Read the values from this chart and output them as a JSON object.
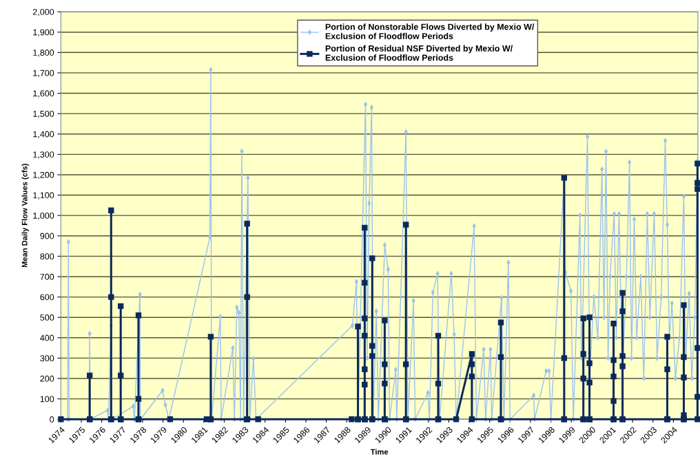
{
  "chart_data": {
    "type": "line",
    "xlabel": "Time",
    "ylabel": "Mean Daily Flow Values (cfs)",
    "xlim": [
      1974,
      2005.2
    ],
    "xticks": [
      1974,
      1975,
      1976,
      1977,
      1978,
      1979,
      1980,
      1981,
      1982,
      1983,
      1984,
      1985,
      1986,
      1987,
      1988,
      1989,
      1990,
      1991,
      1992,
      1993,
      1994,
      1995,
      1996,
      1997,
      1998,
      1999,
      2000,
      2001,
      2002,
      2003,
      2004
    ],
    "ylim": [
      0,
      2000
    ],
    "yticks": [
      0,
      100,
      200,
      300,
      400,
      500,
      600,
      700,
      800,
      900,
      {
        "value": 1000,
        "label": "1,000"
      },
      {
        "value": 1100,
        "label": "1,100"
      },
      {
        "value": 1200,
        "label": "1,200"
      },
      {
        "value": 1300,
        "label": "1,300"
      },
      {
        "value": 1400,
        "label": "1,400"
      },
      {
        "value": 1500,
        "label": "1,500"
      },
      {
        "value": 1600,
        "label": "1,600"
      },
      {
        "value": 1700,
        "label": "1,700"
      },
      {
        "value": 1800,
        "label": "1,800"
      },
      {
        "value": 1900,
        "label": "1,900"
      },
      {
        "value": 2000,
        "label": "2,000"
      }
    ],
    "grid": "y",
    "legend": "top",
    "series": [
      {
        "name": "Portion of Nonstorable Flows Diverted by Mexio W/ Exclusion of Floodflow Periods",
        "color": "#99c2ee",
        "marker": "diamond",
        "x": [
          1974.0,
          1974.33,
          1974.37,
          1974.4,
          1975.38,
          1975.41,
          1975.44,
          1976.29,
          1976.33,
          1976.46,
          1976.5,
          1977.54,
          1977.6,
          1977.87,
          1977.9,
          1978.98,
          1979.12,
          1979.29,
          1981.3,
          1981.34,
          1981.38,
          1981.81,
          1981.85,
          1982.42,
          1982.5,
          1982.62,
          1982.72,
          1982.8,
          1982.86,
          1982.95,
          1983.16,
          1983.25,
          1983.43,
          1983.56,
          1988.28,
          1988.48,
          1988.55,
          1988.92,
          1989.0,
          1989.1,
          1989.22,
          1989.3,
          1989.45,
          1989.55,
          1989.86,
          1990.03,
          1990.1,
          1990.4,
          1990.45,
          1990.9,
          1991.0,
          1991.27,
          1991.35,
          1991.98,
          1992.05,
          1992.22,
          1992.45,
          1992.55,
          1993.12,
          1993.26,
          1993.36,
          1994.24,
          1994.35,
          1994.71,
          1994.8,
          1995.04,
          1995.1,
          1995.58,
          1995.7,
          1995.92,
          1996.0,
          1997.16,
          1997.2,
          1997.77,
          1997.91,
          1998.0,
          1998.65,
          1998.71,
          1998.98,
          1999.1,
          1999.42,
          1999.5,
          1999.79,
          1999.9,
          2000.1,
          2000.3,
          2000.5,
          2000.6,
          2000.7,
          2000.8,
          2000.9,
          2001.1,
          2001.2,
          2001.34,
          2001.5,
          2001.7,
          2001.85,
          2001.95,
          2002.08,
          2002.2,
          2002.4,
          2002.55,
          2002.72,
          2002.85,
          2003.06,
          2003.2,
          2003.4,
          2003.6,
          2003.7,
          2003.8,
          2003.93,
          2004.1,
          2004.3,
          2004.51,
          2004.6,
          2004.77,
          2004.9,
          2005.05,
          2005.18
        ],
        "values": [
          0,
          0,
          870,
          0,
          0,
          420,
          0,
          44,
          0,
          460,
          0,
          64,
          0,
          612,
          0,
          141,
          70,
          0,
          895,
          1715,
          0,
          503,
          0,
          350,
          0,
          549,
          523,
          0,
          1315,
          0,
          1185,
          0,
          297,
          0,
          460,
          675,
          0,
          1545,
          300,
          1060,
          1530,
          0,
          530,
          0,
          855,
          735,
          0,
          243,
          0,
          1410,
          0,
          582,
          0,
          130,
          0,
          622,
          715,
          0,
          715,
          416,
          0,
          948,
          0,
          343,
          0,
          343,
          0,
          596,
          0,
          769,
          0,
          117,
          0,
          237,
          237,
          0,
          1190,
          722,
          629,
          0,
          1001,
          300,
          1387,
          200,
          600,
          400,
          1227,
          500,
          1314,
          300,
          700,
          1008,
          400,
          1008,
          200,
          700,
          1261,
          300,
          981,
          400,
          700,
          200,
          1008,
          500,
          1008,
          300,
          600,
          1367,
          955,
          400,
          569,
          200,
          400,
          1094,
          300,
          616,
          200,
          500,
          1270
        ]
      },
      {
        "name": "Portion of Residual NSF Diverted by Mexio W/ Exclusion of Floodflow Periods",
        "color": "#0b2a5a",
        "marker": "square",
        "x": [
          1974.0,
          1975.41,
          1975.41,
          1975.41,
          1976.46,
          1976.46,
          1976.46,
          1976.46,
          1976.93,
          1976.93,
          1976.93,
          1976.93,
          1977.8,
          1977.8,
          1977.8,
          1977.8,
          1979.35,
          1981.14,
          1981.34,
          1981.34,
          1981.34,
          1983.12,
          1983.12,
          1983.12,
          1983.12,
          1983.66,
          1988.24,
          1988.55,
          1988.55,
          1988.55,
          1988.88,
          1988.88,
          1988.88,
          1988.88,
          1988.88,
          1988.88,
          1988.88,
          1988.88,
          1989.25,
          1989.25,
          1989.25,
          1989.25,
          1989.25,
          1989.86,
          1989.86,
          1989.86,
          1989.86,
          1989.86,
          1990.9,
          1990.9,
          1990.9,
          1990.9,
          1992.48,
          1992.48,
          1992.48,
          1992.48,
          1993.36,
          1994.13,
          1994.13,
          1994.13,
          1994.13,
          1995.55,
          1995.55,
          1995.55,
          1995.55,
          1998.65,
          1998.65,
          1998.65,
          1998.65,
          1999.59,
          1999.59,
          1999.59,
          1999.59,
          1999.59,
          1999.89,
          1999.89,
          1999.89,
          1999.89,
          1999.89,
          2001.07,
          2001.07,
          2001.07,
          2001.07,
          2001.07,
          2001.07,
          2001.51,
          2001.51,
          2001.51,
          2001.51,
          2001.51,
          2001.51,
          2003.7,
          2003.7,
          2003.7,
          2003.7,
          2004.51,
          2004.51,
          2004.51,
          2004.51,
          2004.51,
          2004.51,
          2005.18,
          2005.18,
          2005.18,
          2005.18,
          2005.18,
          2005.18
        ],
        "values": [
          0,
          0,
          215,
          0,
          0,
          1025,
          600,
          0,
          0,
          555,
          215,
          0,
          0,
          510,
          100,
          0,
          0,
          0,
          0,
          405,
          0,
          0,
          960,
          600,
          0,
          0,
          0,
          0,
          455,
          0,
          0,
          940,
          670,
          495,
          410,
          245,
          170,
          0,
          0,
          790,
          360,
          310,
          0,
          0,
          485,
          270,
          175,
          0,
          0,
          955,
          270,
          0,
          0,
          410,
          175,
          0,
          0,
          320,
          270,
          210,
          0,
          0,
          475,
          305,
          0,
          0,
          1185,
          300,
          0,
          0,
          495,
          320,
          200,
          0,
          0,
          500,
          275,
          180,
          0,
          0,
          470,
          290,
          210,
          90,
          0,
          0,
          620,
          530,
          310,
          260,
          0,
          0,
          405,
          245,
          0,
          0,
          560,
          305,
          205,
          20,
          0,
          0,
          1255,
          1160,
          1130,
          350,
          110
        ]
      }
    ]
  }
}
